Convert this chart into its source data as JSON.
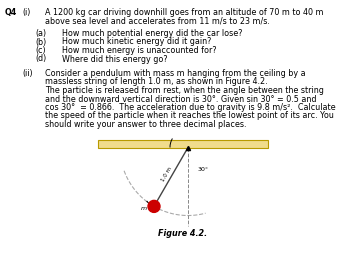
{
  "bg_color": "#ffffff",
  "q_label": "Q4",
  "part_i_label": "(i)",
  "part_i_text_line1": "A 1200 kg car driving downhill goes from an altitude of 70 m to 40 m",
  "part_i_text_line2": "above sea level and accelerates from 11 m/s to 23 m/s.",
  "sub_parts": [
    [
      "(a)",
      "How much potential energy did the car lose?"
    ],
    [
      "(b)",
      "How much kinetic energy did it gain?"
    ],
    [
      "(c)",
      "How much energy is unaccounted for?"
    ],
    [
      "(d)",
      "Where did this energy go?"
    ]
  ],
  "part_ii_label": "(ii)",
  "part_ii_lines": [
    "Consider a pendulum with mass m hanging from the ceiling by a",
    "massless string of length 1.0 m, as shown in Figure 4.2.",
    "The particle is released from rest, when the angle between the string",
    "and the downward vertical direction is 30°. Given sin 30° = 0.5 and",
    "cos 30°  = 0.866.  The acceleration due to gravity is 9.8 m/s².  Calculate",
    "the speed of the particle when it reaches the lowest point of its arc. You",
    "should write your answer to three decimal places."
  ],
  "figure_caption": "Figure 4.2.",
  "ceiling_color": "#f0dc8c",
  "ceiling_edge_color": "#b89a00",
  "string_color": "#444444",
  "arc_color": "#aaaaaa",
  "ball_color": "#cc0000",
  "text_color": "#000000",
  "font_size": 5.8
}
